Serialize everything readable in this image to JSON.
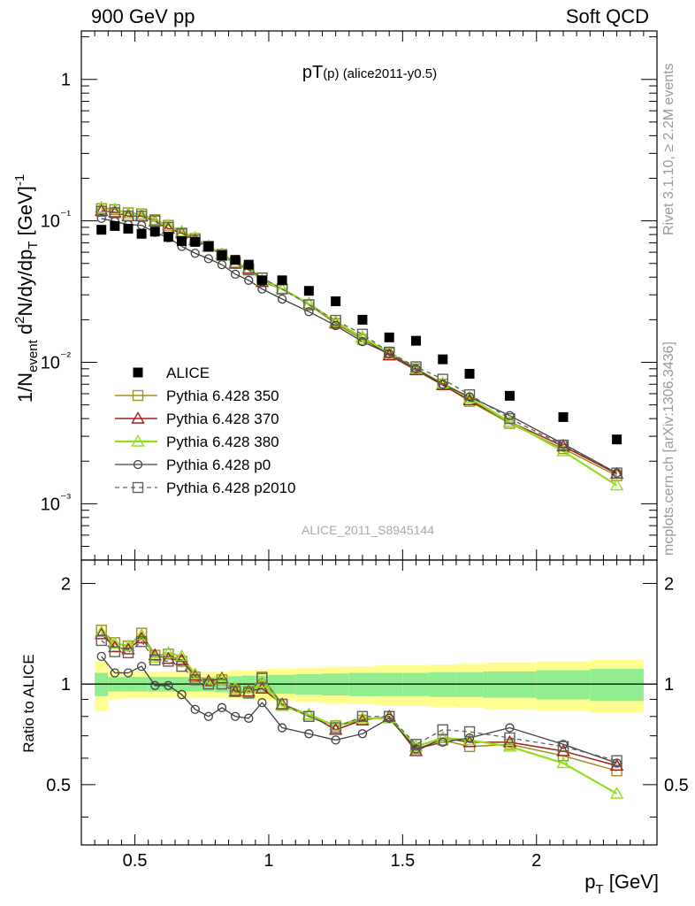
{
  "header": {
    "left": "900 GeV pp",
    "right": "Soft QCD"
  },
  "side": {
    "rivet": "Rivet 3.1.10, ≥ 2.2M events",
    "source": "mcplots.cern.ch [arXiv:1306.3436]"
  },
  "plot_title": "pT(p) (alice2011-y0.5)",
  "watermark": "ALICE_2011_S8945144",
  "colors": {
    "alice": "#000000",
    "p350": "#a09020",
    "p370": "#a01e1e",
    "p380": "#90e020",
    "p0": "#404040",
    "p2010": "#606060",
    "band_inner": "#90ee90",
    "band_outer": "#ffff90"
  },
  "chart_data": [
    {
      "type": "scatter",
      "log_y": true,
      "xlim": [
        0.3,
        2.45
      ],
      "ylim": [
        0.0004,
        2.2
      ],
      "ylabel": "1/N_event d²N/dy/dp_T [GeV]⁻¹",
      "ytick_labels": [
        "10⁻³",
        "10⁻²",
        "10⁻¹",
        "1"
      ],
      "x": [
        0.375,
        0.425,
        0.475,
        0.525,
        0.575,
        0.625,
        0.675,
        0.725,
        0.775,
        0.825,
        0.875,
        0.925,
        0.975,
        1.05,
        1.15,
        1.25,
        1.35,
        1.45,
        1.55,
        1.65,
        1.75,
        1.9,
        2.1,
        2.3
      ],
      "series": [
        {
          "name": "ALICE",
          "marker": "square-filled",
          "values": [
            0.0865,
            0.092,
            0.088,
            0.081,
            0.084,
            0.077,
            0.072,
            0.071,
            0.066,
            0.057,
            0.053,
            0.049,
            0.038,
            0.038,
            0.032,
            0.027,
            0.02,
            0.015,
            0.0142,
            0.0105,
            0.0083,
            0.0058,
            0.0041,
            0.00285
          ]
        },
        {
          "name": "Pythia 6.428 350",
          "marker": "square-open",
          "values": [
            0.122,
            0.12,
            0.114,
            0.112,
            0.102,
            0.093,
            0.082,
            0.075,
            0.066,
            0.058,
            0.051,
            0.046,
            0.0395,
            0.033,
            0.0255,
            0.0188,
            0.0145,
            0.0116,
            0.009,
            0.007,
            0.0053,
            0.0037,
            0.00245,
            0.00158
          ]
        },
        {
          "name": "Pythia 6.428 370",
          "marker": "triangle-open",
          "values": [
            0.118,
            0.115,
            0.108,
            0.108,
            0.099,
            0.088,
            0.082,
            0.073,
            0.066,
            0.058,
            0.05,
            0.046,
            0.037,
            0.033,
            0.026,
            0.019,
            0.015,
            0.0112,
            0.0088,
            0.0069,
            0.0054,
            0.0038,
            0.00255,
            0.00163
          ]
        },
        {
          "name": "Pythia 6.428 380",
          "marker": "triangle-open",
          "values": [
            0.124,
            0.121,
            0.113,
            0.111,
            0.1,
            0.093,
            0.084,
            0.076,
            0.066,
            0.058,
            0.051,
            0.045,
            0.038,
            0.033,
            0.026,
            0.0193,
            0.015,
            0.0117,
            0.009,
            0.0071,
            0.0056,
            0.0038,
            0.00235,
            0.00135
          ]
        },
        {
          "name": "Pythia 6.428 p0",
          "marker": "circle-open",
          "values": [
            0.104,
            0.099,
            0.094,
            0.093,
            0.083,
            0.076,
            0.066,
            0.059,
            0.054,
            0.049,
            0.042,
            0.038,
            0.033,
            0.028,
            0.0228,
            0.0182,
            0.014,
            0.0115,
            0.009,
            0.007,
            0.0057,
            0.0042,
            0.00265,
            0.00165
          ]
        },
        {
          "name": "Pythia 6.428 p2010",
          "marker": "square-open-dashed",
          "values": [
            0.117,
            0.114,
            0.108,
            0.108,
            0.1,
            0.09,
            0.081,
            0.073,
            0.066,
            0.057,
            0.05,
            0.045,
            0.0395,
            0.033,
            0.0255,
            0.0198,
            0.0158,
            0.0118,
            0.0093,
            0.0076,
            0.0059,
            0.004,
            0.0026,
            0.00165
          ]
        }
      ]
    },
    {
      "type": "line",
      "xlim": [
        0.3,
        2.45
      ],
      "ylim": [
        0.33,
        2.35
      ],
      "xlabel": "p_T [GeV]",
      "ylabel": "Ratio to ALICE",
      "xtick_labels": [
        "0.5",
        "1",
        "1.5",
        "2"
      ],
      "ytick_labels": [
        "0.5",
        "1",
        "2"
      ],
      "x": [
        0.375,
        0.425,
        0.475,
        0.525,
        0.575,
        0.625,
        0.675,
        0.725,
        0.775,
        0.825,
        0.875,
        0.925,
        0.975,
        1.05,
        1.15,
        1.25,
        1.35,
        1.45,
        1.55,
        1.65,
        1.75,
        1.9,
        2.1,
        2.3
      ],
      "bands": {
        "edges": [
          0.35,
          0.4,
          0.45,
          0.5,
          0.55,
          0.6,
          0.65,
          0.7,
          0.75,
          0.8,
          0.85,
          0.9,
          0.95,
          1.0,
          1.1,
          1.2,
          1.3,
          1.4,
          1.5,
          1.6,
          1.7,
          1.8,
          2.0,
          2.2,
          2.4
        ],
        "inner_frac": [
          0.08,
          0.05,
          0.05,
          0.05,
          0.05,
          0.05,
          0.05,
          0.05,
          0.05,
          0.055,
          0.055,
          0.06,
          0.06,
          0.065,
          0.07,
          0.075,
          0.08,
          0.08,
          0.08,
          0.085,
          0.085,
          0.09,
          0.1,
          0.11
        ],
        "outer_frac": [
          0.17,
          0.1,
          0.09,
          0.09,
          0.09,
          0.09,
          0.09,
          0.09,
          0.09,
          0.09,
          0.1,
          0.1,
          0.105,
          0.11,
          0.12,
          0.125,
          0.13,
          0.14,
          0.14,
          0.145,
          0.15,
          0.16,
          0.17,
          0.18
        ]
      },
      "series": [
        {
          "name": "Pythia 6.428 350",
          "values": [
            1.45,
            1.33,
            1.3,
            1.42,
            1.22,
            1.23,
            1.17,
            1.05,
            1.0,
            1.03,
            0.96,
            0.95,
            1.05,
            0.87,
            0.8,
            0.75,
            0.78,
            0.8,
            0.64,
            0.68,
            0.65,
            0.66,
            0.61,
            0.55
          ]
        },
        {
          "name": "Pythia 6.428 370",
          "values": [
            1.41,
            1.29,
            1.27,
            1.37,
            1.22,
            1.19,
            1.18,
            1.06,
            1.02,
            1.04,
            0.95,
            0.95,
            0.97,
            0.87,
            0.81,
            0.73,
            0.78,
            0.8,
            0.63,
            0.69,
            0.67,
            0.67,
            0.63,
            0.57
          ]
        },
        {
          "name": "Pythia 6.428 380",
          "values": [
            1.43,
            1.32,
            1.3,
            1.4,
            1.2,
            1.24,
            1.21,
            1.07,
            1.0,
            1.03,
            0.97,
            0.94,
            1.01,
            0.86,
            0.81,
            0.75,
            0.79,
            0.79,
            0.65,
            0.69,
            0.68,
            0.65,
            0.58,
            0.47
          ]
        },
        {
          "name": "Pythia 6.428 p0",
          "values": [
            1.21,
            1.08,
            1.08,
            1.13,
            0.99,
            0.99,
            0.93,
            0.84,
            0.8,
            0.85,
            0.8,
            0.79,
            0.88,
            0.74,
            0.71,
            0.68,
            0.71,
            0.79,
            0.64,
            0.67,
            0.69,
            0.74,
            0.66,
            0.58
          ]
        },
        {
          "name": "Pythia 6.428 p2010",
          "values": [
            1.35,
            1.25,
            1.24,
            1.34,
            1.18,
            1.17,
            1.13,
            1.03,
            1.0,
            1.0,
            0.95,
            0.94,
            1.04,
            0.87,
            0.8,
            0.74,
            0.8,
            0.8,
            0.66,
            0.73,
            0.72,
            0.69,
            0.65,
            0.59
          ]
        }
      ]
    }
  ]
}
